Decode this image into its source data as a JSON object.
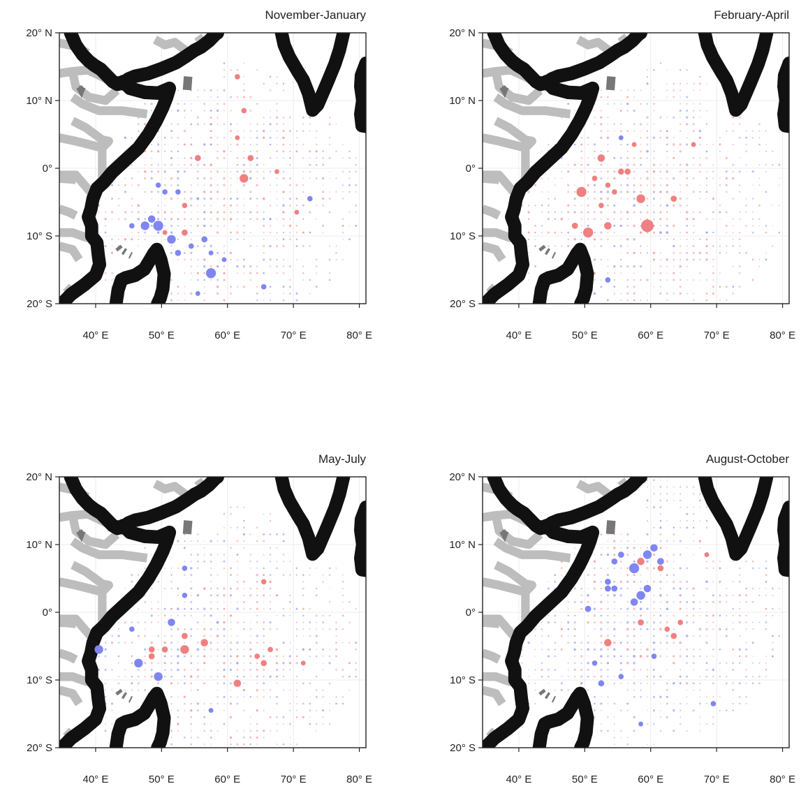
{
  "figure": {
    "panels": [
      {
        "title": "November-January"
      },
      {
        "title": "February-April"
      },
      {
        "title": "May-July"
      },
      {
        "title": "August-October"
      }
    ],
    "x_ticks": [
      "40° E",
      "50° E",
      "60° E",
      "70° E",
      "80° E"
    ],
    "y_ticks": [
      "20° N",
      "10° N",
      "0°",
      "10° S",
      "20° S"
    ]
  },
  "colors": {
    "positive": "#f08080",
    "negative": "#7f86f2",
    "coast": "#111111",
    "borders": "#bdbdbd",
    "grid": "#ececec"
  },
  "chart_data": {
    "type": "scatter",
    "xlim": [
      34.5,
      81
    ],
    "ylim": [
      -20,
      20
    ],
    "x_ticks_deg": [
      40,
      50,
      60,
      70,
      80
    ],
    "y_ticks_deg": [
      20,
      10,
      0,
      -10,
      -20
    ],
    "grid": true,
    "encoding": "proportional symbols; blue = negative, red = positive",
    "series": [
      {
        "panel": "November-January",
        "points": [
          [
            49.5,
            -8.5,
            -3
          ],
          [
            47.5,
            -8.5,
            -2.5
          ],
          [
            51.5,
            -10.5,
            -2.5
          ],
          [
            57.5,
            -15.5,
            -3
          ],
          [
            48.5,
            -7.5,
            -2
          ],
          [
            52.5,
            -12.5,
            -1.5
          ],
          [
            56.5,
            -10.5,
            -1.5
          ],
          [
            54.5,
            -11.5,
            -1.2
          ],
          [
            50.5,
            -3.5,
            -1.2
          ],
          [
            49.5,
            -2.5,
            -1.2
          ],
          [
            52.5,
            -3.5,
            -1.2
          ],
          [
            45.5,
            -8.5,
            -1.2
          ],
          [
            72.5,
            -4.5,
            -1.2
          ],
          [
            65.5,
            -17.5,
            -1.2
          ],
          [
            55.5,
            -18.5,
            -1
          ],
          [
            57.5,
            -12.5,
            -1
          ],
          [
            59.5,
            -13.5,
            -1
          ],
          [
            62.5,
            -1.5,
            2.5
          ],
          [
            63.5,
            1.5,
            1.5
          ],
          [
            55.5,
            1.5,
            1.5
          ],
          [
            53.5,
            -9.5,
            1.5
          ],
          [
            53.5,
            -5.5,
            1.2
          ],
          [
            61.5,
            13.5,
            1.2
          ],
          [
            62.5,
            8.5,
            1.2
          ],
          [
            61.5,
            4.5,
            1
          ],
          [
            67.5,
            -0.5,
            1
          ],
          [
            70.5,
            -6.5,
            1
          ],
          [
            50.5,
            -9.5,
            1
          ]
        ]
      },
      {
        "panel": "February-April",
        "points": [
          [
            59.5,
            -8.5,
            4
          ],
          [
            50.5,
            -9.5,
            3
          ],
          [
            49.5,
            -3.5,
            3
          ],
          [
            58.5,
            -4.5,
            2.5
          ],
          [
            53.5,
            -8.5,
            2
          ],
          [
            52.5,
            1.5,
            2
          ],
          [
            55.5,
            -0.5,
            1.5
          ],
          [
            56.5,
            -0.5,
            1.5
          ],
          [
            53.5,
            -2.5,
            1.2
          ],
          [
            54.5,
            -3.5,
            1.2
          ],
          [
            51.5,
            -1.5,
            1.2
          ],
          [
            48.5,
            -8.5,
            1.5
          ],
          [
            63.5,
            -4.5,
            1.5
          ],
          [
            53.5,
            -16.5,
            -1.2
          ],
          [
            57.5,
            3.5,
            1
          ],
          [
            55.5,
            4.5,
            -1
          ],
          [
            52.5,
            -5.5,
            1.2
          ],
          [
            66.5,
            3.5,
            1
          ]
        ]
      },
      {
        "panel": "May-July",
        "points": [
          [
            53.5,
            -5.5,
            2.5
          ],
          [
            56.5,
            -4.5,
            2
          ],
          [
            61.5,
            -10.5,
            2
          ],
          [
            49.5,
            -9.5,
            -2.5
          ],
          [
            46.5,
            -7.5,
            -2.5
          ],
          [
            40.5,
            -5.5,
            -2.5
          ],
          [
            51.5,
            -1.5,
            -2
          ],
          [
            53.5,
            -3.5,
            1.5
          ],
          [
            48.5,
            -5.5,
            1.5
          ],
          [
            48.5,
            -6.5,
            1.5
          ],
          [
            50.5,
            -5.5,
            1.5
          ],
          [
            65.5,
            -7.5,
            1.5
          ],
          [
            64.5,
            -6.5,
            1.2
          ],
          [
            65.5,
            4.5,
            1.2
          ],
          [
            66.5,
            -5.5,
            1.2
          ],
          [
            53.5,
            2.5,
            -1.2
          ],
          [
            53.5,
            6.5,
            -1.2
          ],
          [
            45.5,
            -2.5,
            -1.2
          ],
          [
            71.5,
            -7.5,
            1
          ],
          [
            57.5,
            -14.5,
            -1
          ]
        ]
      },
      {
        "panel": "August-October",
        "points": [
          [
            57.5,
            6.5,
            -3
          ],
          [
            59.5,
            8.5,
            -2.5
          ],
          [
            60.5,
            9.5,
            -2
          ],
          [
            58.5,
            2.5,
            -2.5
          ],
          [
            57.5,
            1.5,
            -2
          ],
          [
            59.5,
            3.5,
            -2
          ],
          [
            58.5,
            7.5,
            2
          ],
          [
            61.5,
            7.5,
            -1.8
          ],
          [
            54.5,
            7.5,
            -1.5
          ],
          [
            55.5,
            8.5,
            -1.5
          ],
          [
            53.5,
            4.5,
            -1.5
          ],
          [
            53.5,
            3.5,
            -1.5
          ],
          [
            54.5,
            3.5,
            -1.5
          ],
          [
            53.5,
            -4.5,
            2
          ],
          [
            50.5,
            0.5,
            -1.5
          ],
          [
            58.5,
            -1.5,
            1.5
          ],
          [
            63.5,
            -3.5,
            1.5
          ],
          [
            61.5,
            6.5,
            1.5
          ],
          [
            62.5,
            -2.5,
            1.2
          ],
          [
            52.5,
            -10.5,
            -1.5
          ],
          [
            51.5,
            -7.5,
            -1.2
          ],
          [
            55.5,
            -9.5,
            -1.2
          ],
          [
            60.5,
            -6.5,
            -1.2
          ],
          [
            69.5,
            -13.5,
            -1.2
          ],
          [
            58.5,
            -16.5,
            -1
          ],
          [
            64.5,
            -1.5,
            1.2
          ],
          [
            68.5,
            8.5,
            1
          ]
        ]
      }
    ]
  }
}
